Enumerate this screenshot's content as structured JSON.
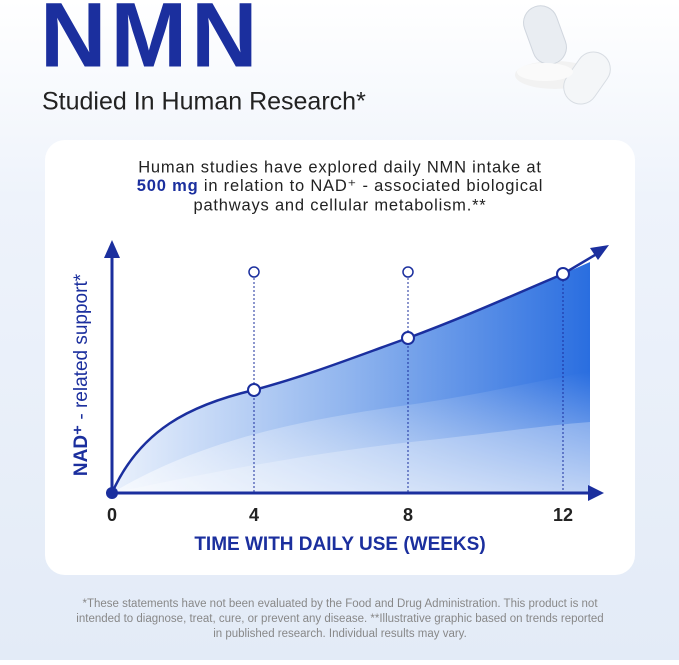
{
  "header": {
    "title": "NMN",
    "subtitle": "Studied In Human Research*"
  },
  "card": {
    "intro_line1": "Human studies have explored daily NMN intake at",
    "intro_bold": "500 mg",
    "intro_line2": " in relation to NAD⁺ - associated biological",
    "intro_line3": "pathways and cellular metabolism.**"
  },
  "chart": {
    "y_label_bold": "NAD⁺",
    "y_label_rest": " - related support*",
    "x_ticks": [
      "0",
      "4",
      "8",
      "12"
    ],
    "x_label": "TIME WITH DAILY USE (WEEKS)"
  },
  "footnote": [
    "*These statements have not been evaluated by the Food and Drug Administration. This product is not",
    "intended to diagnose, treat, cure, or prevent any disease. **Illustrative graphic based on trends reported",
    "in published research. Individual results may vary."
  ]
}
